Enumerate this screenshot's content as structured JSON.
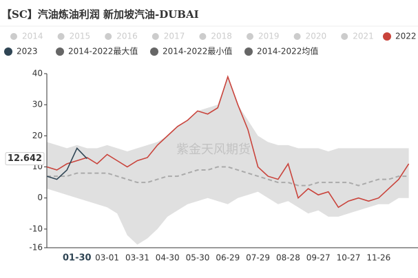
{
  "chart_data": {
    "type": "line",
    "title": "【SC】汽油炼油利润 新加坡汽油-DUBAI",
    "watermark": "紫金天风期货",
    "inactive_legend": [
      "2014",
      "2015",
      "2016",
      "2017",
      "2018",
      "2019",
      "2020",
      "2021"
    ],
    "inactive_color": "#cccccc",
    "band_color": "#e0e0e0",
    "categories": [
      null,
      null,
      null,
      "01-30",
      null,
      null,
      "03-01",
      null,
      null,
      "03-31",
      null,
      null,
      "04-30",
      null,
      null,
      "05-30",
      null,
      null,
      "06-29",
      null,
      null,
      "07-29",
      null,
      null,
      "08-28",
      null,
      null,
      "09-27",
      null,
      null,
      "10-27",
      null,
      null,
      "11-26",
      null,
      null,
      null
    ],
    "highlight_category": "01-30",
    "series": [
      {
        "name": "2022",
        "color": "#c9433b",
        "values": [
          10,
          9,
          11,
          12,
          13,
          11,
          14,
          12,
          10,
          12,
          13,
          17,
          20,
          23,
          25,
          28,
          27,
          29,
          39,
          30,
          22,
          10,
          7,
          6,
          11,
          0,
          3,
          1,
          2,
          -3,
          -1,
          0,
          -1,
          0,
          3,
          6,
          11
        ]
      },
      {
        "name": "2023",
        "color": "#2f4554",
        "values": [
          7,
          6,
          9,
          16,
          12.642,
          null,
          null,
          null,
          null,
          null,
          null,
          null,
          null,
          null,
          null,
          null,
          null,
          null,
          null,
          null,
          null,
          null,
          null,
          null,
          null,
          null,
          null,
          null,
          null,
          null,
          null,
          null,
          null,
          null,
          null,
          null,
          null
        ]
      },
      {
        "name": "2014-2022最大值",
        "color": "#666666",
        "values": [
          18,
          17,
          16,
          17,
          16,
          16,
          17,
          16,
          15,
          16,
          17,
          18,
          20,
          23,
          25,
          28,
          29,
          30,
          39,
          30,
          25,
          20,
          18,
          17,
          17,
          16,
          16,
          16,
          15,
          16,
          16,
          16,
          16,
          16,
          16,
          16,
          16
        ]
      },
      {
        "name": "2014-2022最小值",
        "color": "#666666",
        "values": [
          3,
          2,
          1,
          0,
          -1,
          -2,
          -3,
          -5,
          -12,
          -15,
          -13,
          -10,
          -6,
          -4,
          -2,
          -1,
          0,
          -1,
          -2,
          0,
          1,
          2,
          0,
          -2,
          -1,
          -3,
          -5,
          -4,
          -6,
          -6,
          -5,
          -4,
          -3,
          -2,
          -2,
          0,
          0
        ]
      },
      {
        "name": "2014-2022均值",
        "color": "#666666",
        "values": [
          7,
          7,
          7,
          8,
          8,
          8,
          8,
          7,
          6,
          5,
          5,
          6,
          7,
          7,
          8,
          9,
          9,
          10,
          10,
          9,
          8,
          7,
          6,
          5,
          5,
          4,
          4,
          5,
          5,
          5,
          5,
          4,
          5,
          6,
          6,
          7,
          7
        ]
      }
    ],
    "ylim": [
      -16,
      40
    ],
    "yticks": [
      -16,
      -10,
      0,
      10,
      20,
      30,
      40
    ]
  }
}
